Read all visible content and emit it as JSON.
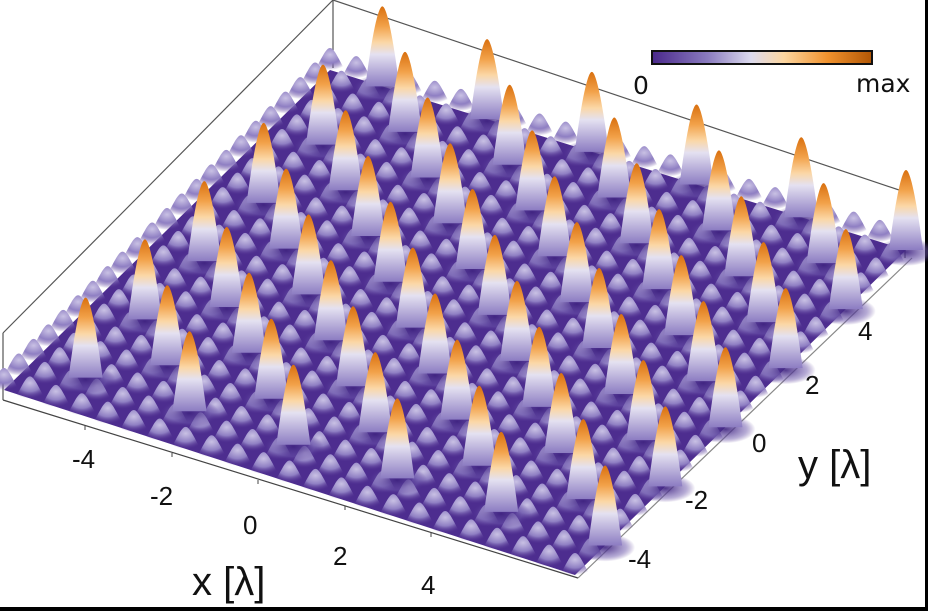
{
  "chart_data": {
    "type": "surface3d",
    "title": "",
    "description": "3D surface of intensity over x-y plane showing a periodic lattice of tall peaks surrounded by smaller bumps",
    "xlabel": "x [λ]",
    "ylabel": "y [λ]",
    "zlabel": "",
    "x_ticks": [
      "-4",
      "-2",
      "0",
      "2",
      "4"
    ],
    "y_ticks": [
      "-4",
      "-2",
      "0",
      "2",
      "4"
    ],
    "xlim": [
      -5.5,
      5.5
    ],
    "ylim": [
      -5.5,
      5.5
    ],
    "colorbar": {
      "min_label": "0",
      "max_label": "max",
      "colors": [
        "#4b2a8c",
        "#8a7bbf",
        "#d9d9ec",
        "#fdd49e",
        "#f08c2a",
        "#b35806"
      ]
    },
    "peak_spacing_lambda": 2.0,
    "grid": false
  },
  "colorbar": {
    "min_label": "0",
    "max_label": "max"
  },
  "axes": {
    "x": {
      "label": "x [λ]",
      "ticks": [
        "-4",
        "-2",
        "0",
        "2",
        "4"
      ]
    },
    "y": {
      "label": "y [λ]",
      "ticks": [
        "-4",
        "-2",
        "0",
        "2",
        "4"
      ]
    }
  },
  "colors": {
    "base": "#4d2d8f",
    "bump": "#a79ad0",
    "highlight": "#e6e3f2",
    "peak_mid": "#f5b66a",
    "peak_top": "#e07b14"
  }
}
